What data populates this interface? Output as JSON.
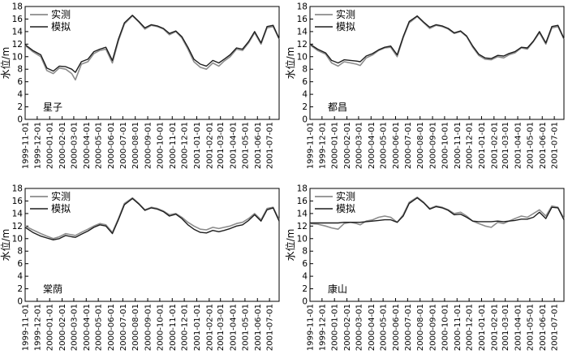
{
  "chart_data": [
    {
      "type": "line",
      "station": "星子",
      "ylabel": "水位/m",
      "ylim": [
        0,
        18
      ],
      "yticks": [
        0,
        2,
        4,
        6,
        8,
        10,
        12,
        14,
        16,
        18
      ],
      "xticks": [
        "1999-11-01",
        "1999-12-01",
        "2000-01-01",
        "2000-02-01",
        "2000-03-01",
        "2000-04-01",
        "2000-05-01",
        "2000-06-01",
        "2000-07-01",
        "2000-08-01",
        "2000-09-01",
        "2000-10-01",
        "2000-11-01",
        "2000-12-01",
        "2001-01-01",
        "2001-02-01",
        "2001-03-01",
        "2001-04-01",
        "2001-05-01",
        "2001-06-01",
        "2001-07-01"
      ],
      "xlim": [
        "1999-11-01",
        "2001-07-25"
      ],
      "legend": {
        "position": "top-left",
        "entries": [
          "实测",
          "模拟"
        ]
      },
      "series": [
        {
          "name": "实测",
          "color": "#8c8c8c",
          "x": [
            "1999-11-01",
            "1999-11-20",
            "1999-12-10",
            "1999-12-25",
            "2000-01-10",
            "2000-01-25",
            "2000-02-10",
            "2000-02-25",
            "2000-03-05",
            "2000-03-20",
            "2000-04-05",
            "2000-04-20",
            "2000-05-05",
            "2000-05-20",
            "2000-06-05",
            "2000-06-20",
            "2000-07-05",
            "2000-07-25",
            "2000-08-10",
            "2000-08-25",
            "2000-09-10",
            "2000-09-25",
            "2000-10-10",
            "2000-10-25",
            "2000-11-10",
            "2000-11-25",
            "2000-12-10",
            "2000-12-25",
            "2001-01-10",
            "2001-01-25",
            "2001-02-10",
            "2001-02-25",
            "2001-03-10",
            "2001-03-25",
            "2001-04-10",
            "2001-04-25",
            "2001-05-10",
            "2001-05-25",
            "2001-06-10",
            "2001-06-25",
            "2001-07-10",
            "2001-07-25"
          ],
          "y": [
            11.8,
            10.8,
            10.0,
            7.8,
            7.3,
            8.2,
            8.0,
            7.3,
            6.3,
            8.8,
            9.2,
            10.5,
            11.0,
            11.2,
            9.0,
            12.5,
            15.2,
            16.5,
            15.5,
            14.4,
            15.0,
            14.8,
            14.4,
            13.5,
            14.0,
            13.0,
            11.2,
            9.2,
            8.3,
            8.0,
            9.0,
            8.5,
            9.3,
            10.0,
            11.2,
            11.0,
            12.2,
            13.8,
            12.0,
            14.6,
            14.8,
            12.8
          ]
        },
        {
          "name": "模拟",
          "color": "#1e1e1e",
          "x": [
            "1999-11-01",
            "1999-11-20",
            "1999-12-10",
            "1999-12-25",
            "2000-01-10",
            "2000-01-25",
            "2000-02-10",
            "2000-02-25",
            "2000-03-05",
            "2000-03-20",
            "2000-04-05",
            "2000-04-20",
            "2000-05-05",
            "2000-05-20",
            "2000-06-05",
            "2000-06-20",
            "2000-07-05",
            "2000-07-25",
            "2000-08-10",
            "2000-08-25",
            "2000-09-10",
            "2000-09-25",
            "2000-10-10",
            "2000-10-25",
            "2000-11-10",
            "2000-11-25",
            "2000-12-10",
            "2000-12-25",
            "2001-01-10",
            "2001-01-25",
            "2001-02-10",
            "2001-02-25",
            "2001-03-10",
            "2001-03-25",
            "2001-04-10",
            "2001-04-25",
            "2001-05-10",
            "2001-05-25",
            "2001-06-10",
            "2001-06-25",
            "2001-07-10",
            "2001-07-25"
          ],
          "y": [
            11.9,
            11.0,
            10.3,
            8.2,
            7.7,
            8.5,
            8.4,
            8.0,
            7.5,
            9.2,
            9.6,
            10.8,
            11.2,
            11.5,
            9.4,
            12.8,
            15.4,
            16.6,
            15.6,
            14.6,
            15.1,
            14.9,
            14.5,
            13.7,
            14.1,
            13.2,
            11.5,
            9.6,
            8.8,
            8.5,
            9.4,
            9.0,
            9.6,
            10.3,
            11.4,
            11.2,
            12.4,
            14.0,
            12.2,
            14.8,
            15.0,
            12.9
          ]
        }
      ]
    },
    {
      "type": "line",
      "station": "都昌",
      "ylabel": "水位/m",
      "ylim": [
        0,
        18
      ],
      "yticks": [
        0,
        2,
        4,
        6,
        8,
        10,
        12,
        14,
        16,
        18
      ],
      "xticks": [
        "1999-11-01",
        "1999-12-01",
        "2000-01-01",
        "2000-02-01",
        "2000-03-01",
        "2000-04-01",
        "2000-05-01",
        "2000-06-01",
        "2000-07-01",
        "2000-08-01",
        "2000-09-01",
        "2000-10-01",
        "2000-11-01",
        "2000-12-01",
        "2001-01-01",
        "2001-02-01",
        "2001-03-01",
        "2001-04-01",
        "2001-05-01",
        "2001-06-01",
        "2001-07-01"
      ],
      "xlim": [
        "1999-11-01",
        "2001-07-25"
      ],
      "legend": {
        "position": "top-left",
        "entries": [
          "实测",
          "模拟"
        ]
      },
      "series": [
        {
          "name": "实测",
          "color": "#8c8c8c",
          "x": [
            "1999-11-01",
            "1999-11-20",
            "1999-12-10",
            "1999-12-25",
            "2000-01-10",
            "2000-01-25",
            "2000-02-10",
            "2000-02-25",
            "2000-03-05",
            "2000-03-20",
            "2000-04-05",
            "2000-04-20",
            "2000-05-05",
            "2000-05-20",
            "2000-06-05",
            "2000-06-20",
            "2000-07-05",
            "2000-07-25",
            "2000-08-10",
            "2000-08-25",
            "2000-09-10",
            "2000-09-25",
            "2000-10-10",
            "2000-10-25",
            "2000-11-10",
            "2000-11-25",
            "2000-12-10",
            "2000-12-25",
            "2001-01-10",
            "2001-01-25",
            "2001-02-10",
            "2001-02-25",
            "2001-03-10",
            "2001-03-25",
            "2001-04-10",
            "2001-04-25",
            "2001-05-10",
            "2001-05-25",
            "2001-06-10",
            "2001-06-25",
            "2001-07-10",
            "2001-07-25"
          ],
          "y": [
            11.9,
            11.0,
            10.4,
            9.0,
            8.5,
            9.2,
            9.0,
            8.8,
            8.6,
            9.8,
            10.3,
            11.0,
            11.4,
            11.5,
            10.0,
            13.0,
            15.4,
            16.4,
            15.4,
            14.5,
            15.0,
            14.8,
            14.4,
            13.7,
            14.0,
            13.2,
            11.5,
            10.2,
            9.6,
            9.5,
            10.0,
            9.8,
            10.3,
            10.6,
            11.4,
            11.2,
            12.4,
            13.8,
            12.0,
            14.6,
            14.8,
            12.8
          ]
        },
        {
          "name": "模拟",
          "color": "#1e1e1e",
          "x": [
            "1999-11-01",
            "1999-11-20",
            "1999-12-10",
            "1999-12-25",
            "2000-01-10",
            "2000-01-25",
            "2000-02-10",
            "2000-02-25",
            "2000-03-05",
            "2000-03-20",
            "2000-04-05",
            "2000-04-20",
            "2000-05-05",
            "2000-05-20",
            "2000-06-05",
            "2000-06-20",
            "2000-07-05",
            "2000-07-25",
            "2000-08-10",
            "2000-08-25",
            "2000-09-10",
            "2000-09-25",
            "2000-10-10",
            "2000-10-25",
            "2000-11-10",
            "2000-11-25",
            "2000-12-10",
            "2000-12-25",
            "2001-01-10",
            "2001-01-25",
            "2001-02-10",
            "2001-02-25",
            "2001-03-10",
            "2001-03-25",
            "2001-04-10",
            "2001-04-25",
            "2001-05-10",
            "2001-05-25",
            "2001-06-10",
            "2001-06-25",
            "2001-07-10",
            "2001-07-25"
          ],
          "y": [
            12.0,
            11.2,
            10.6,
            9.4,
            9.0,
            9.5,
            9.4,
            9.3,
            9.2,
            10.1,
            10.5,
            11.1,
            11.5,
            11.7,
            10.3,
            13.2,
            15.6,
            16.5,
            15.5,
            14.7,
            15.1,
            14.9,
            14.5,
            13.8,
            14.1,
            13.3,
            11.7,
            10.4,
            9.8,
            9.7,
            10.2,
            10.1,
            10.5,
            10.8,
            11.5,
            11.4,
            12.5,
            14.0,
            12.2,
            14.8,
            15.0,
            12.9
          ]
        }
      ]
    },
    {
      "type": "line",
      "station": "棠荫",
      "ylabel": "水位/m",
      "ylim": [
        0,
        18
      ],
      "yticks": [
        0,
        2,
        4,
        6,
        8,
        10,
        12,
        14,
        16,
        18
      ],
      "xticks": [
        "1999-11-01",
        "1999-12-01",
        "2000-01-01",
        "2000-02-01",
        "2000-03-01",
        "2000-04-01",
        "2000-05-01",
        "2000-06-01",
        "2000-07-01",
        "2000-08-01",
        "2000-09-01",
        "2000-10-01",
        "2000-11-01",
        "2000-12-01",
        "2001-01-01",
        "2001-02-01",
        "2001-03-01",
        "2001-04-01",
        "2001-05-01",
        "2001-06-01",
        "2001-07-01"
      ],
      "xlim": [
        "1999-11-01",
        "2001-07-25"
      ],
      "legend": {
        "position": "top-left",
        "entries": [
          "实测",
          "模拟"
        ]
      },
      "series": [
        {
          "name": "实测",
          "color": "#8c8c8c",
          "x": [
            "1999-11-01",
            "1999-11-20",
            "1999-12-10",
            "1999-12-25",
            "2000-01-10",
            "2000-01-25",
            "2000-02-10",
            "2000-02-25",
            "2000-03-05",
            "2000-03-20",
            "2000-04-05",
            "2000-04-20",
            "2000-05-05",
            "2000-05-20",
            "2000-06-05",
            "2000-06-20",
            "2000-07-05",
            "2000-07-25",
            "2000-08-10",
            "2000-08-25",
            "2000-09-10",
            "2000-09-25",
            "2000-10-10",
            "2000-10-25",
            "2000-11-10",
            "2000-11-25",
            "2000-12-10",
            "2000-12-25",
            "2001-01-10",
            "2001-01-25",
            "2001-02-10",
            "2001-02-25",
            "2001-03-10",
            "2001-03-25",
            "2001-04-10",
            "2001-04-25",
            "2001-05-10",
            "2001-05-25",
            "2001-06-10",
            "2001-06-25",
            "2001-07-10",
            "2001-07-25"
          ],
          "y": [
            12.0,
            11.4,
            10.8,
            10.4,
            10.0,
            10.3,
            10.8,
            10.6,
            10.5,
            11.0,
            11.5,
            12.0,
            12.4,
            12.2,
            11.0,
            13.2,
            15.6,
            16.5,
            15.6,
            14.6,
            15.0,
            14.8,
            14.4,
            13.8,
            14.0,
            13.4,
            12.6,
            12.0,
            11.5,
            11.4,
            11.8,
            11.6,
            11.8,
            12.0,
            12.4,
            12.6,
            13.2,
            14.0,
            13.0,
            14.8,
            15.0,
            13.0
          ]
        },
        {
          "name": "模拟",
          "color": "#1e1e1e",
          "x": [
            "1999-11-01",
            "1999-11-20",
            "1999-12-10",
            "1999-12-25",
            "2000-01-10",
            "2000-01-25",
            "2000-02-10",
            "2000-02-25",
            "2000-03-05",
            "2000-03-20",
            "2000-04-05",
            "2000-04-20",
            "2000-05-05",
            "2000-05-20",
            "2000-06-05",
            "2000-06-20",
            "2000-07-05",
            "2000-07-25",
            "2000-08-10",
            "2000-08-25",
            "2000-09-10",
            "2000-09-25",
            "2000-10-10",
            "2000-10-25",
            "2000-11-10",
            "2000-11-25",
            "2000-12-10",
            "2000-12-25",
            "2001-01-10",
            "2001-01-25",
            "2001-02-10",
            "2001-02-25",
            "2001-03-10",
            "2001-03-25",
            "2001-04-10",
            "2001-04-25",
            "2001-05-10",
            "2001-05-25",
            "2001-06-10",
            "2001-06-25",
            "2001-07-10",
            "2001-07-25"
          ],
          "y": [
            11.8,
            11.0,
            10.4,
            10.1,
            9.8,
            10.0,
            10.5,
            10.3,
            10.2,
            10.7,
            11.2,
            11.8,
            12.2,
            12.0,
            10.8,
            13.0,
            15.4,
            16.4,
            15.5,
            14.5,
            14.9,
            14.7,
            14.3,
            13.6,
            13.9,
            13.2,
            12.2,
            11.5,
            11.0,
            10.9,
            11.3,
            11.1,
            11.3,
            11.6,
            12.0,
            12.2,
            12.9,
            13.8,
            12.8,
            14.6,
            14.9,
            12.8
          ]
        }
      ]
    },
    {
      "type": "line",
      "station": "康山",
      "ylabel": "水位/m",
      "ylim": [
        0,
        18
      ],
      "yticks": [
        0,
        2,
        4,
        6,
        8,
        10,
        12,
        14,
        16,
        18
      ],
      "xticks": [
        "1999-11-01",
        "1999-12-01",
        "2000-01-01",
        "2000-02-01",
        "2000-03-01",
        "2000-04-01",
        "2000-05-01",
        "2000-06-01",
        "2000-07-01",
        "2000-08-01",
        "2000-09-01",
        "2000-10-01",
        "2000-11-01",
        "2000-12-01",
        "2001-01-01",
        "2001-02-01",
        "2001-03-01",
        "2001-04-01",
        "2001-05-01",
        "2001-06-01",
        "2001-07-01"
      ],
      "xlim": [
        "1999-11-01",
        "2001-07-25"
      ],
      "legend": {
        "position": "top-left",
        "entries": [
          "实测",
          "模拟"
        ]
      },
      "series": [
        {
          "name": "实测",
          "color": "#8c8c8c",
          "x": [
            "1999-11-01",
            "1999-11-20",
            "1999-12-10",
            "1999-12-25",
            "2000-01-10",
            "2000-01-25",
            "2000-02-10",
            "2000-02-25",
            "2000-03-05",
            "2000-03-20",
            "2000-04-05",
            "2000-04-20",
            "2000-05-05",
            "2000-05-20",
            "2000-06-05",
            "2000-06-20",
            "2000-07-05",
            "2000-07-25",
            "2000-08-10",
            "2000-08-25",
            "2000-09-10",
            "2000-09-25",
            "2000-10-10",
            "2000-10-25",
            "2000-11-10",
            "2000-11-25",
            "2000-12-10",
            "2000-12-25",
            "2001-01-10",
            "2001-01-25",
            "2001-02-10",
            "2001-02-25",
            "2001-03-10",
            "2001-03-25",
            "2001-04-10",
            "2001-04-25",
            "2001-05-10",
            "2001-05-25",
            "2001-06-10",
            "2001-06-25",
            "2001-07-10",
            "2001-07-25"
          ],
          "y": [
            12.4,
            12.3,
            12.0,
            11.7,
            11.5,
            12.4,
            12.6,
            12.4,
            12.2,
            12.8,
            13.0,
            13.4,
            13.6,
            13.4,
            12.6,
            13.8,
            15.8,
            16.6,
            15.8,
            14.8,
            15.2,
            15.0,
            14.6,
            14.0,
            14.2,
            13.6,
            12.8,
            12.4,
            12.0,
            11.8,
            12.6,
            12.4,
            12.8,
            13.2,
            13.6,
            13.4,
            14.0,
            14.6,
            13.6,
            15.2,
            15.0,
            13.2
          ]
        },
        {
          "name": "模拟",
          "color": "#1e1e1e",
          "x": [
            "1999-11-01",
            "1999-11-20",
            "1999-12-10",
            "1999-12-25",
            "2000-01-10",
            "2000-01-25",
            "2000-02-10",
            "2000-02-25",
            "2000-03-05",
            "2000-03-20",
            "2000-04-05",
            "2000-04-20",
            "2000-05-05",
            "2000-05-20",
            "2000-06-05",
            "2000-06-20",
            "2000-07-05",
            "2000-07-25",
            "2000-08-10",
            "2000-08-25",
            "2000-09-10",
            "2000-09-25",
            "2000-10-10",
            "2000-10-25",
            "2000-11-10",
            "2000-11-25",
            "2000-12-10",
            "2000-12-25",
            "2001-01-10",
            "2001-01-25",
            "2001-02-10",
            "2001-02-25",
            "2001-03-10",
            "2001-03-25",
            "2001-04-10",
            "2001-04-25",
            "2001-05-10",
            "2001-05-25",
            "2001-06-10",
            "2001-06-25",
            "2001-07-10",
            "2001-07-25"
          ],
          "y": [
            12.5,
            12.5,
            12.5,
            12.5,
            12.5,
            12.6,
            12.6,
            12.6,
            12.6,
            12.7,
            12.8,
            12.9,
            13.0,
            13.0,
            12.6,
            13.6,
            15.6,
            16.5,
            15.7,
            14.7,
            15.1,
            14.9,
            14.5,
            13.8,
            13.9,
            13.4,
            12.8,
            12.7,
            12.7,
            12.7,
            12.8,
            12.7,
            12.8,
            12.9,
            13.1,
            13.1,
            13.4,
            14.2,
            13.2,
            15.0,
            14.9,
            13.0
          ]
        }
      ]
    }
  ]
}
